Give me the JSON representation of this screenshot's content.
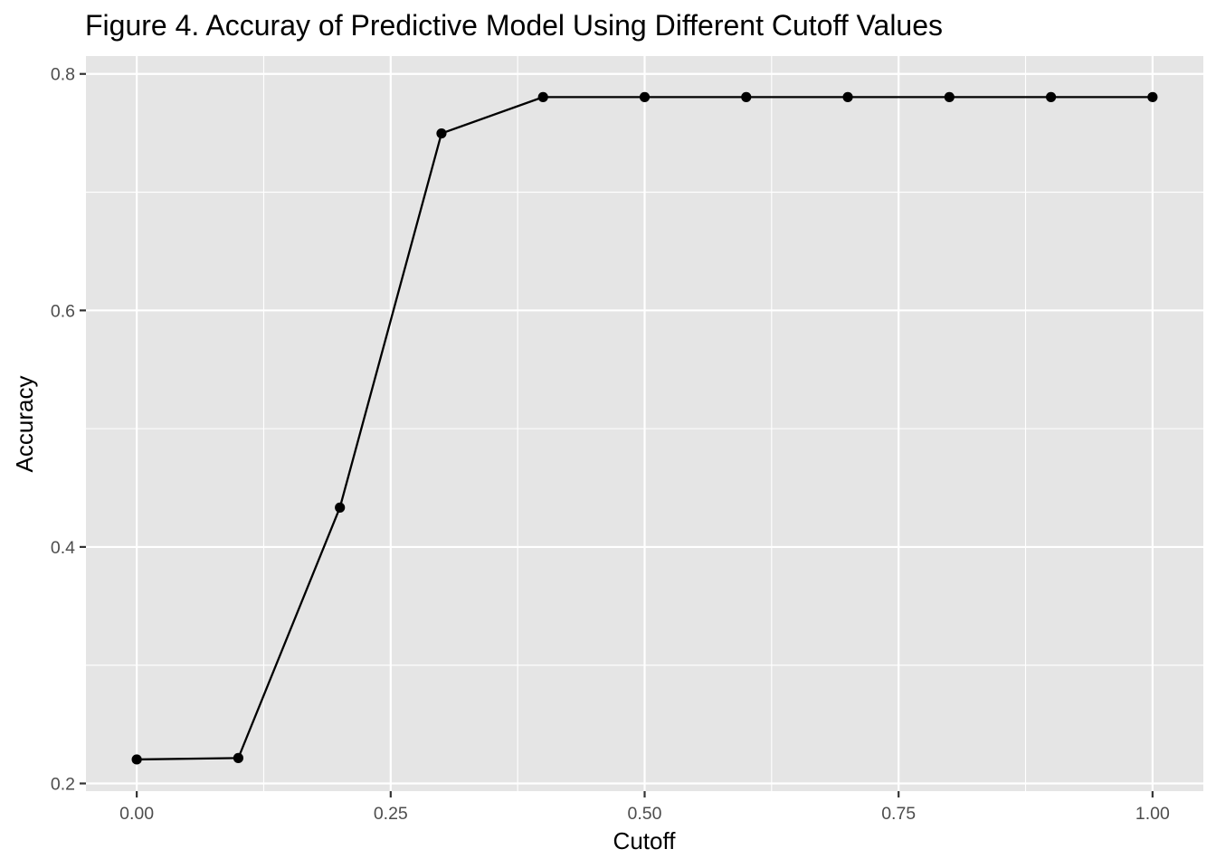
{
  "chart_data": {
    "type": "line",
    "title": "Figure 4. Accuray of Predictive Model Using Different Cutoff Values",
    "xlabel": "Cutoff",
    "ylabel": "Accuracy",
    "x": [
      0.0,
      0.1,
      0.2,
      0.3,
      0.4,
      0.5,
      0.6,
      0.7,
      0.8,
      0.9,
      1.0
    ],
    "series": [
      {
        "values": [
          0.2203,
          0.2215,
          0.4333,
          0.7497,
          0.7804,
          0.7804,
          0.7804,
          0.7804,
          0.7804,
          0.7804,
          0.7804
        ]
      }
    ],
    "xlim": [
      -0.05,
      1.05
    ],
    "ylim": [
      0.1935,
      0.8151
    ],
    "x_ticks": [
      0.0,
      0.25,
      0.5,
      0.75,
      1.0
    ],
    "x_tick_labels": [
      "0.00",
      "0.25",
      "0.50",
      "0.75",
      "1.00"
    ],
    "x_minor_ticks": [
      0.125,
      0.375,
      0.625,
      0.875
    ],
    "y_ticks": [
      0.2,
      0.4,
      0.6,
      0.8
    ],
    "y_tick_labels": [
      "0.2",
      "0.4",
      "0.6",
      "0.8"
    ],
    "y_minor_ticks": [
      0.3,
      0.5,
      0.7
    ],
    "grid": true,
    "legend": "none",
    "colors": {
      "panel_background": "#e5e5e5",
      "grid": "#ffffff",
      "line": "#000000",
      "point": "#000000",
      "tick_mark": "#333333",
      "tick_label": "#4d4d4d"
    }
  }
}
